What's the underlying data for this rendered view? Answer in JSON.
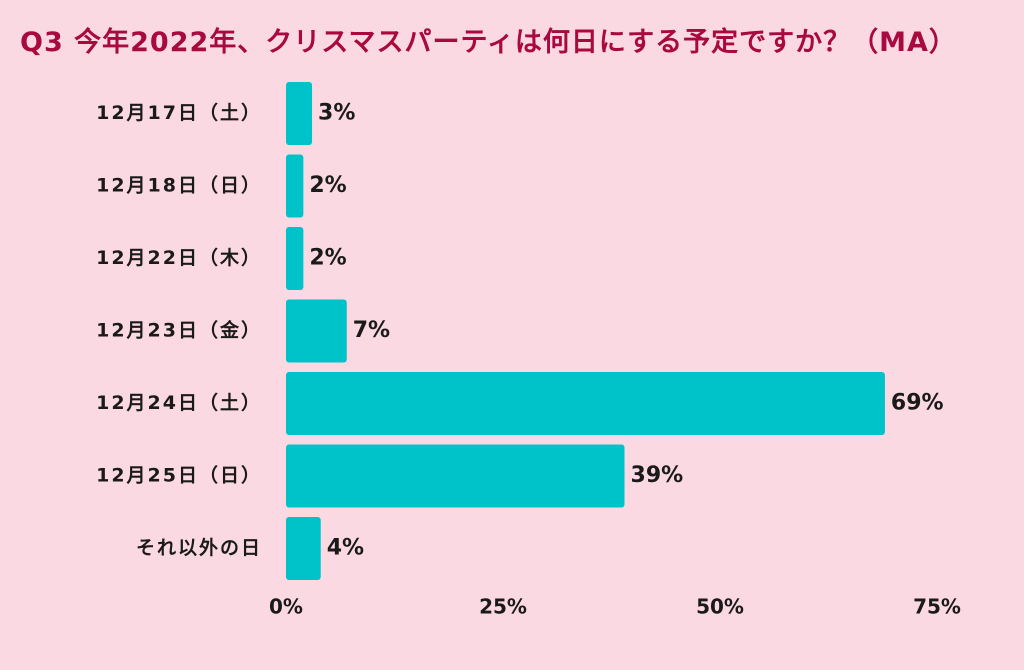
{
  "chart_data": {
    "type": "bar",
    "orientation": "horizontal",
    "title": "Q3 今年2022年、クリスマスパーティは何日にする予定ですか？（MA）",
    "categories": [
      "12月17日（土）",
      "12月18日（日）",
      "12月22日（木）",
      "12月23日（金）",
      "12月24日（土）",
      "12月25日（日）",
      "それ以外の日"
    ],
    "values": [
      3,
      2,
      2,
      7,
      69,
      39,
      4
    ],
    "value_labels": [
      "3%",
      "2%",
      "2%",
      "7%",
      "69%",
      "39%",
      "4%"
    ],
    "xlim": [
      0,
      75
    ],
    "xticks": [
      0,
      25,
      50,
      75
    ],
    "xtick_labels": [
      "0%",
      "25%",
      "50%",
      "75%"
    ],
    "grid": false,
    "bar_color": "#00c2c9",
    "title_color": "#a8093f",
    "background": "#fbd9e3"
  }
}
